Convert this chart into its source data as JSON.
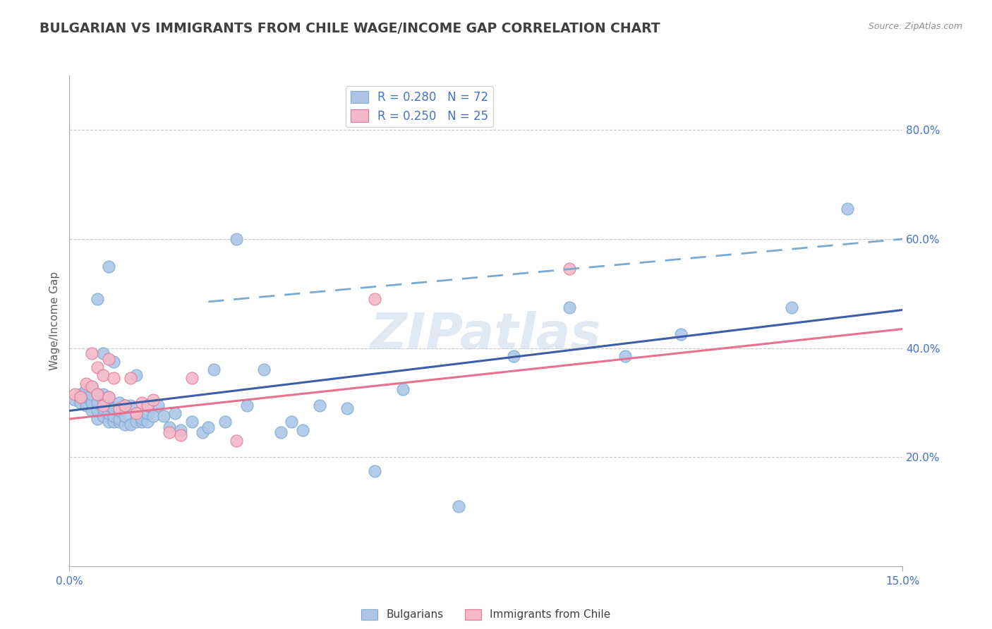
{
  "title": "BULGARIAN VS IMMIGRANTS FROM CHILE WAGE/INCOME GAP CORRELATION CHART",
  "source": "Source: ZipAtlas.com",
  "ylabel": "Wage/Income Gap",
  "xlabel": "",
  "xlim": [
    0.0,
    0.15
  ],
  "ylim": [
    0.0,
    0.9
  ],
  "bg_color": "#ffffff",
  "plot_bg_color": "#ffffff",
  "grid_color": "#c8c8c8",
  "scatter1_color": "#adc6e8",
  "scatter1_edge": "#7aaacf",
  "scatter2_color": "#f4b8c8",
  "scatter2_edge": "#e07898",
  "line1_color": "#3b5ea6",
  "line1_dash": "solid",
  "line2_color": "#e87090",
  "line2_dash": "solid",
  "line3_color": "#7aaacf",
  "line3_dash": [
    8,
    5
  ],
  "title_color": "#404040",
  "title_fontsize": 13.5,
  "axis_label_color": "#606060",
  "tick_label_color": "#4472c4",
  "legend_label_color": "#4472c4",
  "watermark_color": "#c8d8ec",
  "watermark_text": "ZIPatlas",
  "trend1_x0": 0.0,
  "trend1_y0": 0.285,
  "trend1_x1": 0.15,
  "trend1_y1": 0.47,
  "trend2_x0": 0.0,
  "trend2_y0": 0.27,
  "trend2_x1": 0.15,
  "trend2_y1": 0.435,
  "trend3_x0": 0.025,
  "trend3_y0": 0.485,
  "trend3_x1": 0.15,
  "trend3_y1": 0.6,
  "scatter1_x": [
    0.001,
    0.002,
    0.002,
    0.003,
    0.003,
    0.003,
    0.004,
    0.004,
    0.004,
    0.004,
    0.005,
    0.005,
    0.005,
    0.005,
    0.005,
    0.006,
    0.006,
    0.006,
    0.006,
    0.006,
    0.007,
    0.007,
    0.007,
    0.007,
    0.007,
    0.008,
    0.008,
    0.008,
    0.008,
    0.009,
    0.009,
    0.009,
    0.009,
    0.01,
    0.01,
    0.01,
    0.011,
    0.011,
    0.012,
    0.012,
    0.013,
    0.013,
    0.014,
    0.014,
    0.015,
    0.016,
    0.017,
    0.018,
    0.019,
    0.02,
    0.022,
    0.024,
    0.025,
    0.026,
    0.028,
    0.03,
    0.032,
    0.035,
    0.038,
    0.04,
    0.042,
    0.045,
    0.05,
    0.055,
    0.06,
    0.07,
    0.08,
    0.09,
    0.1,
    0.11,
    0.13,
    0.14
  ],
  "scatter1_y": [
    0.305,
    0.3,
    0.315,
    0.295,
    0.31,
    0.325,
    0.285,
    0.3,
    0.315,
    0.33,
    0.27,
    0.285,
    0.3,
    0.315,
    0.49,
    0.275,
    0.29,
    0.305,
    0.315,
    0.39,
    0.265,
    0.28,
    0.295,
    0.31,
    0.55,
    0.265,
    0.275,
    0.29,
    0.375,
    0.265,
    0.27,
    0.285,
    0.3,
    0.26,
    0.275,
    0.295,
    0.26,
    0.295,
    0.265,
    0.35,
    0.265,
    0.27,
    0.265,
    0.28,
    0.275,
    0.295,
    0.275,
    0.255,
    0.28,
    0.25,
    0.265,
    0.245,
    0.255,
    0.36,
    0.265,
    0.6,
    0.295,
    0.36,
    0.245,
    0.265,
    0.25,
    0.295,
    0.29,
    0.175,
    0.325,
    0.11,
    0.385,
    0.475,
    0.385,
    0.425,
    0.475,
    0.655
  ],
  "scatter2_x": [
    0.001,
    0.002,
    0.003,
    0.004,
    0.004,
    0.005,
    0.005,
    0.006,
    0.006,
    0.007,
    0.007,
    0.008,
    0.009,
    0.01,
    0.011,
    0.012,
    0.013,
    0.014,
    0.015,
    0.018,
    0.02,
    0.022,
    0.03,
    0.055,
    0.09
  ],
  "scatter2_y": [
    0.315,
    0.31,
    0.335,
    0.33,
    0.39,
    0.315,
    0.365,
    0.295,
    0.35,
    0.31,
    0.38,
    0.345,
    0.29,
    0.295,
    0.345,
    0.28,
    0.3,
    0.295,
    0.305,
    0.245,
    0.24,
    0.345,
    0.23,
    0.49,
    0.545
  ]
}
